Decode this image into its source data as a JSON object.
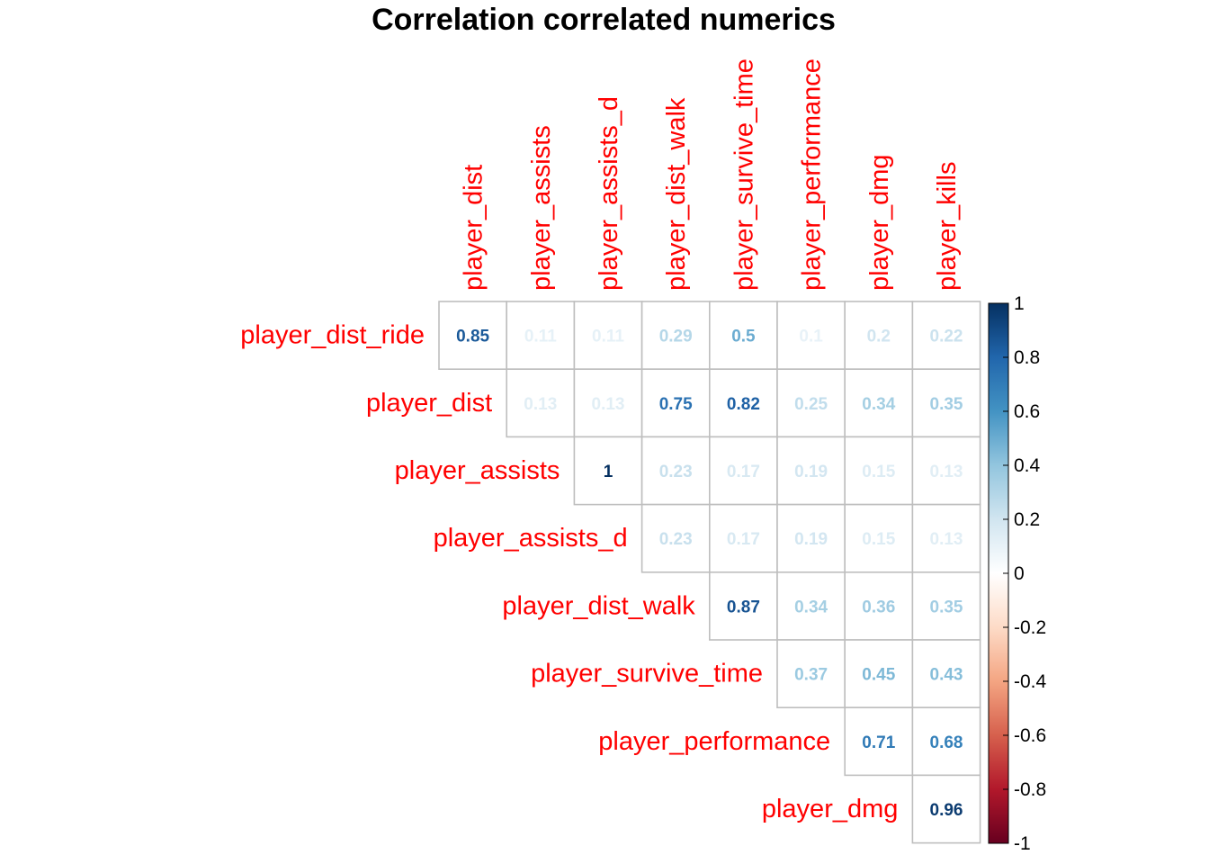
{
  "chart_data": {
    "type": "heatmap",
    "title": "Correlation correlated numerics",
    "row_labels": [
      "player_dist_ride",
      "player_dist",
      "player_assists",
      "player_assists_d",
      "player_dist_walk",
      "player_survive_time",
      "player_performance",
      "player_dmg"
    ],
    "col_labels": [
      "player_dist",
      "player_assists",
      "player_assists_d",
      "player_dist_walk",
      "player_survive_time",
      "player_performance",
      "player_dmg",
      "player_kills"
    ],
    "values": [
      [
        0.85,
        0.11,
        0.11,
        0.29,
        0.5,
        0.1,
        0.2,
        0.22
      ],
      [
        null,
        0.13,
        0.13,
        0.75,
        0.82,
        0.25,
        0.34,
        0.35
      ],
      [
        null,
        null,
        1,
        0.23,
        0.17,
        0.19,
        0.15,
        0.13
      ],
      [
        null,
        null,
        null,
        0.23,
        0.17,
        0.19,
        0.15,
        0.13
      ],
      [
        null,
        null,
        null,
        null,
        0.87,
        0.34,
        0.36,
        0.35
      ],
      [
        null,
        null,
        null,
        null,
        null,
        0.37,
        0.45,
        0.43
      ],
      [
        null,
        null,
        null,
        null,
        null,
        null,
        0.71,
        0.68
      ],
      [
        null,
        null,
        null,
        null,
        null,
        null,
        null,
        0.96
      ]
    ],
    "display_labels": [
      [
        "0.85",
        "0.11",
        "0.11",
        "0.29",
        "0.5",
        "0.1",
        "0.2",
        "0.22"
      ],
      [
        null,
        "0.13",
        "0.13",
        "0.75",
        "0.82",
        "0.25",
        "0.34",
        "0.35"
      ],
      [
        null,
        null,
        "1",
        "0.23",
        "0.17",
        "0.19",
        "0.15",
        "0.13"
      ],
      [
        null,
        null,
        null,
        "0.23",
        "0.17",
        "0.19",
        "0.15",
        "0.13"
      ],
      [
        null,
        null,
        null,
        null,
        "0.87",
        "0.34",
        "0.36",
        "0.35"
      ],
      [
        null,
        null,
        null,
        null,
        null,
        "0.37",
        "0.45",
        "0.43"
      ],
      [
        null,
        null,
        null,
        null,
        null,
        null,
        "0.71",
        "0.68"
      ],
      [
        null,
        null,
        null,
        null,
        null,
        null,
        null,
        "0.96"
      ]
    ],
    "colorbar": {
      "range": [
        -1,
        1
      ],
      "ticks": [
        "1",
        "0.8",
        "0.6",
        "0.4",
        "0.2",
        "0",
        "-0.2",
        "-0.4",
        "-0.6",
        "-0.8",
        "-1"
      ],
      "colors": [
        "#67001F",
        "#B2182B",
        "#D6604D",
        "#F4A582",
        "#FDDBC7",
        "#FFFFFF",
        "#D1E5F0",
        "#92C5DE",
        "#4393C3",
        "#2166AC",
        "#053061"
      ]
    },
    "label_color": "#FF0000",
    "grid_color": "#BEBEBE",
    "grid": true,
    "legend_position": "right"
  }
}
